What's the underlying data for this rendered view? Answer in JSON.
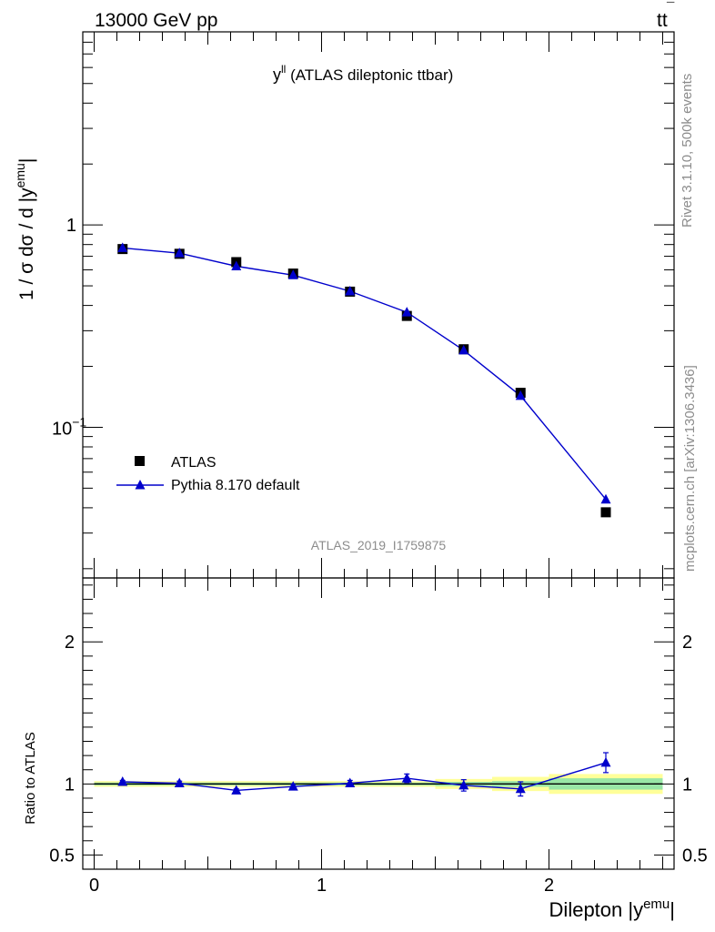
{
  "header": {
    "left": "13000 GeV pp",
    "right_main": "tt",
    "right_bar": "¯"
  },
  "side_labels": {
    "rivet": "Rivet 3.1.10,  500k events",
    "mcplots": "mcplots.cern.ch [arXiv:1306.3436]"
  },
  "chart_data": [
    {
      "type": "scatter",
      "panel": "main",
      "title_base": "y",
      "title_sup": "ll",
      "title_rest": " (ATLAS dileptonic ttbar)",
      "ylabel_base": "1 / σ  dσ / d |y",
      "ylabel_sup": "emu",
      "ylabel_end": "|",
      "yscale": "log",
      "ylim": [
        0.018,
        9.0
      ],
      "xlim": [
        -0.05,
        2.55
      ],
      "yticks": [
        {
          "value": 1,
          "label": "1"
        },
        {
          "value": 0.1,
          "label": "10",
          "sup": "−1"
        }
      ],
      "watermark": "ATLAS_2019_I1759875",
      "legend_position": "bottom-left",
      "series": [
        {
          "name": "ATLAS",
          "marker": "square",
          "color": "#000000",
          "x": [
            0.125,
            0.375,
            0.625,
            0.875,
            1.125,
            1.375,
            1.625,
            1.875,
            2.25
          ],
          "y": [
            0.76,
            0.72,
            0.655,
            0.575,
            0.468,
            0.355,
            0.243,
            0.148,
            0.038
          ]
        },
        {
          "name": "Pythia 8.170 default",
          "marker": "triangle",
          "color": "#0000cc",
          "x": [
            0.125,
            0.375,
            0.625,
            0.875,
            1.125,
            1.375,
            1.625,
            1.875,
            2.25
          ],
          "y": [
            0.77,
            0.725,
            0.625,
            0.565,
            0.47,
            0.37,
            0.24,
            0.143,
            0.044
          ]
        }
      ]
    },
    {
      "type": "line",
      "panel": "ratio",
      "ylabel": "Ratio to ATLAS",
      "xlabel_base": "Dilepton |y",
      "xlabel_sup": "emu",
      "xlabel_end": "|",
      "ylim": [
        0.4,
        2.45
      ],
      "xlim": [
        -0.05,
        2.55
      ],
      "yticks": [
        {
          "value": 0.5,
          "label": "0.5"
        },
        {
          "value": 1,
          "label": "1"
        },
        {
          "value": 2,
          "label": "2"
        }
      ],
      "xticks": [
        {
          "value": 0,
          "label": "0"
        },
        {
          "value": 1,
          "label": "1"
        },
        {
          "value": 2,
          "label": "2"
        }
      ],
      "bands": [
        {
          "x0": 0.0,
          "x1": 0.25,
          "outer": 0.02,
          "inner": 0.01
        },
        {
          "x0": 0.25,
          "x1": 0.5,
          "outer": 0.02,
          "inner": 0.01
        },
        {
          "x0": 0.5,
          "x1": 0.75,
          "outer": 0.02,
          "inner": 0.01
        },
        {
          "x0": 0.75,
          "x1": 0.975,
          "outer": 0.02,
          "inner": 0.01
        },
        {
          "x0": 0.975,
          "x1": 1.25,
          "outer": 0.02,
          "inner": 0.01
        },
        {
          "x0": 1.25,
          "x1": 1.5,
          "outer": 0.02,
          "inner": 0.01
        },
        {
          "x0": 1.5,
          "x1": 1.75,
          "outer": 0.035,
          "inner": 0.015
        },
        {
          "x0": 1.75,
          "x1": 2.0,
          "outer": 0.05,
          "inner": 0.02
        },
        {
          "x0": 2.0,
          "x1": 2.5,
          "outer": 0.07,
          "inner": 0.04
        }
      ],
      "series": [
        {
          "name": "Pythia 8.170 default",
          "color": "#0000cc",
          "x": [
            0.125,
            0.375,
            0.625,
            0.875,
            1.125,
            1.375,
            1.625,
            1.875,
            2.25
          ],
          "y": [
            1.015,
            1.005,
            0.955,
            0.982,
            1.005,
            1.04,
            0.99,
            0.965,
            1.15
          ],
          "err": [
            0.01,
            0.015,
            0.01,
            0.015,
            0.02,
            0.03,
            0.04,
            0.05,
            0.07
          ]
        }
      ]
    }
  ]
}
